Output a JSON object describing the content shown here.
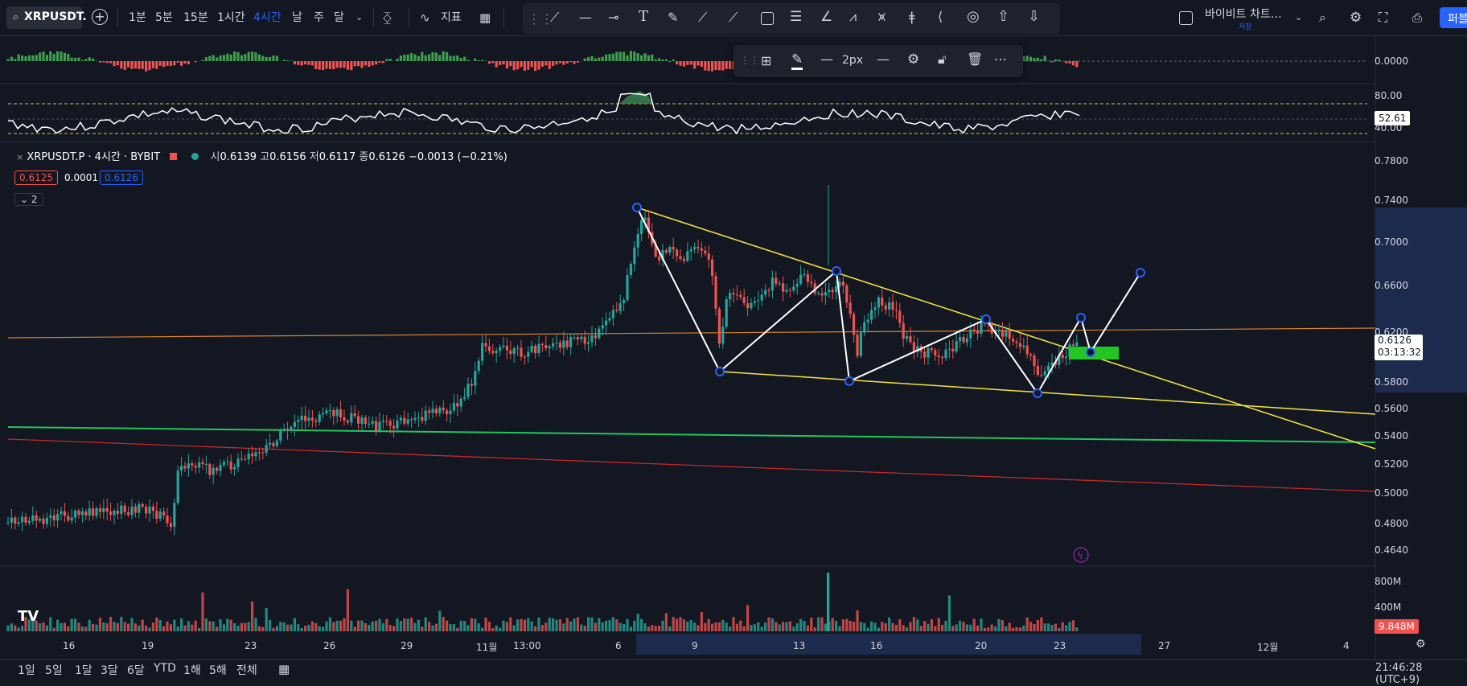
{
  "toolbar": {
    "symbol": "XRPUSDT.",
    "intervals": [
      "1분",
      "5분",
      "15분",
      "1시간",
      "4시간",
      "날",
      "주",
      "달"
    ],
    "active_interval": "4시간",
    "indicators_label": "지표",
    "layout_name": "바이비트 차트…",
    "save_label": "저장",
    "publish_label": "퍼블"
  },
  "floating_toolbar": {
    "width_label": "2px"
  },
  "legend": {
    "title": "XRPUSDT.P · 4시간 · BYBIT",
    "open_label": "시",
    "open": "0.6139",
    "high_label": "고",
    "high": "0.6156",
    "low_label": "저",
    "low": "0.6117",
    "close_label": "종",
    "close": "0.6126",
    "change": "−0.0013 (−0.21%)",
    "bid": "0.6125",
    "spread": "0.0001",
    "ask": "0.6126",
    "collapse_count": "2"
  },
  "price_axis": [
    "0.7800",
    "0.7400",
    "0.7000",
    "0.6600",
    "0.6200",
    "0.5800",
    "0.5600",
    "0.5400",
    "0.5200",
    "0.5000",
    "0.4800",
    "0.4640"
  ],
  "last_price": {
    "value": "0.6126",
    "countdown": "03:13:32"
  },
  "osc_axis": {
    "zero": "0.0000"
  },
  "rsi_axis": {
    "upper": "80.00",
    "value": "52.61",
    "lower": "40.00"
  },
  "volume_axis": {
    "upper": "800M",
    "lower": "400M",
    "current": "9.848M"
  },
  "time_axis": [
    "16",
    "19",
    "23",
    "26",
    "29",
    "11월",
    "13:00",
    "6",
    "9",
    "13",
    "16",
    "20",
    "23",
    "27",
    "12월",
    "4"
  ],
  "range_buttons": [
    "1일",
    "5일",
    "1달",
    "3달",
    "6달",
    "YTD",
    "1해",
    "5해",
    "전체"
  ],
  "clock": "21:46:28 (UTC+9)",
  "colors": {
    "bg": "#131722",
    "up": "#26a69a",
    "down": "#ef5350",
    "trend": "#f5e342",
    "support": "#22c55e",
    "resistance": "#c62828",
    "orange": "#d9822b"
  }
}
